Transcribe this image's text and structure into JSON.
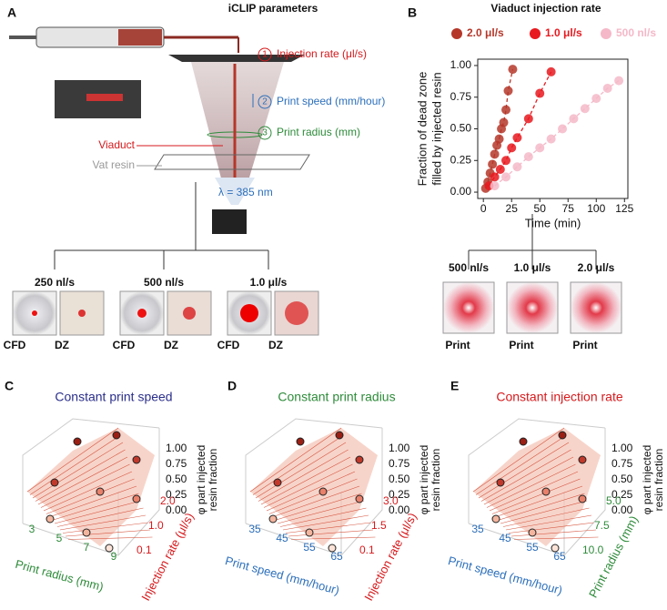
{
  "panel_a": {
    "label": "A",
    "title": "iCLIP parameters",
    "params": [
      {
        "number": "1",
        "text": "Injection rate (μl/s)"
      },
      {
        "number": "2",
        "text": "Print speed (mm/hour)"
      },
      {
        "number": "3",
        "text": "Print radius (mm)"
      }
    ],
    "viaduct": "Viaduct",
    "vat_resin": "Vat resin",
    "wavelength": "λ = 385 nm",
    "rates": [
      {
        "rate": "250 nl/s",
        "left": "CFD",
        "right": "DZ"
      },
      {
        "rate": "500 nl/s",
        "left": "CFD",
        "right": "DZ"
      },
      {
        "rate": "1.0 μl/s",
        "left": "CFD",
        "right": "DZ"
      }
    ]
  },
  "panel_b_label": "B",
  "prints": [
    {
      "rate": "500 nl/s",
      "label": "Print"
    },
    {
      "rate": "1.0 μl/s",
      "label": "Print"
    },
    {
      "rate": "2.0 μl/s",
      "label": "Print"
    }
  ],
  "chart_data": {
    "type": "scatter",
    "title": "Viaduct injection rate",
    "xlabel": "Time (min)",
    "ylabel": [
      "Fraction of dead zone",
      "filled by injected resin"
    ],
    "xlim": [
      -5,
      128
    ],
    "xticks": [
      0,
      25,
      50,
      75,
      100,
      125
    ],
    "ylim": [
      -0.05,
      1.05
    ],
    "yticks": [
      {
        "value": 0,
        "label": "0.00"
      },
      {
        "value": 0.25,
        "label": "0.25"
      },
      {
        "value": 0.5,
        "label": "0.50"
      },
      {
        "value": 0.75,
        "label": "0.75"
      },
      {
        "value": 1,
        "label": "1.00"
      }
    ],
    "series": [
      {
        "name": "2.0 μl/s",
        "color": "#b5372a",
        "x": [
          2,
          4,
          6,
          8,
          10,
          12,
          14,
          16,
          18,
          20,
          22,
          26
        ],
        "values": [
          0.03,
          0.08,
          0.15,
          0.22,
          0.3,
          0.37,
          0.42,
          0.5,
          0.55,
          0.65,
          0.8,
          0.97
        ]
      },
      {
        "name": "1.0 μl/s",
        "color": "#e8191f",
        "x": [
          5,
          10,
          15,
          20,
          25,
          30,
          40,
          50,
          60
        ],
        "values": [
          0.05,
          0.12,
          0.18,
          0.25,
          0.35,
          0.43,
          0.58,
          0.78,
          0.95
        ]
      },
      {
        "name": "500 nl/s",
        "color": "#f5b8c8",
        "x": [
          10,
          20,
          30,
          40,
          50,
          60,
          70,
          80,
          90,
          100,
          110,
          120
        ],
        "values": [
          0.05,
          0.12,
          0.2,
          0.28,
          0.35,
          0.42,
          0.5,
          0.58,
          0.66,
          0.74,
          0.82,
          0.88
        ]
      }
    ]
  },
  "surfaces": [
    {
      "label": "C",
      "title": "Constant print speed",
      "x_axis": "Print radius (mm)",
      "xticks": [
        "3",
        "5",
        "7",
        "9"
      ],
      "y_axis": "Injection rate (μl/s)",
      "yticks": [
        "0.1",
        "1.0",
        "2.0"
      ],
      "zticks": [
        "1.00",
        "0.75",
        "0.50",
        "0.25",
        "0.00"
      ],
      "z_axis": [
        "φ part injected",
        "resin fraction"
      ]
    },
    {
      "label": "D",
      "title": "Constant print radius",
      "x_axis": "Print speed (mm/hour)",
      "xticks": [
        "35",
        "45",
        "55",
        "65"
      ],
      "y_axis": "Injection rate (μl/s)",
      "yticks": [
        "0.1",
        "1.5",
        "3.0"
      ],
      "zticks": [
        "1.00",
        "0.75",
        "0.50",
        "0.25",
        "0.00"
      ],
      "z_axis": [
        "φ part injected",
        "resin fraction"
      ]
    },
    {
      "label": "E",
      "title": "Constant injection rate",
      "x_axis": "Print speed (mm/hour)",
      "xticks": [
        "35",
        "45",
        "55",
        "65"
      ],
      "y_axis": "Print radius (mm)",
      "yticks": [
        "10.0",
        "7.5",
        "5.0"
      ],
      "zticks": [
        "1.00",
        "0.75",
        "0.50",
        "0.25",
        "0.00"
      ],
      "z_axis": [
        "φ part injected",
        "resin fraction"
      ]
    }
  ]
}
